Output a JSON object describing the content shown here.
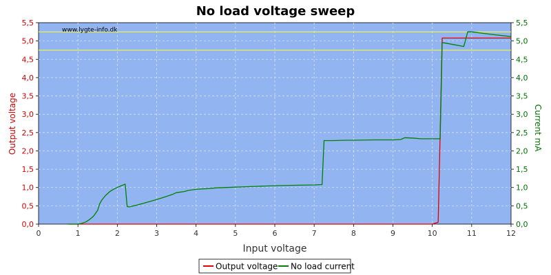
{
  "chart_data": {
    "type": "line",
    "title": "No load voltage sweep",
    "watermark": "www.lygte-info.dk",
    "xlabel": "Input voltage",
    "ylabel_left": "Output voltage",
    "ylabel_right": "Current mA",
    "xlim": [
      0,
      12
    ],
    "ylim_left": [
      0,
      5.5
    ],
    "ylim_right": [
      0,
      5.5
    ],
    "x_ticks": [
      0,
      1,
      2,
      3,
      4,
      5,
      6,
      7,
      8,
      9,
      10,
      11,
      12
    ],
    "x_tick_labels": [
      "0",
      "1",
      "2",
      "3",
      "4",
      "5",
      "6",
      "7",
      "8",
      "9",
      "10",
      "11",
      "12"
    ],
    "y_ticks": [
      0,
      0.5,
      1,
      1.5,
      2,
      2.5,
      3,
      3.5,
      4,
      4.5,
      5,
      5.5
    ],
    "y_left_tick_labels": [
      "0,0",
      "0,5",
      "1,0",
      "1,5",
      "2,0",
      "2,5",
      "3,0",
      "3,5",
      "4,0",
      "4,5",
      "5,0",
      "5,5"
    ],
    "y_right_tick_labels": [
      "0,0",
      "0,5",
      "1,0",
      "1,5",
      "2,0",
      "2,5",
      "3,0",
      "3,5",
      "4,0",
      "4,5",
      "5,0",
      "5,5"
    ],
    "grid": true,
    "reference_lines": [
      5.25,
      4.75
    ],
    "legend_position": "bottom-center",
    "series": [
      {
        "name": "Output voltage",
        "axis": "left",
        "color": "#e00000",
        "x": [
          0.75,
          2.0,
          4.0,
          6.0,
          8.0,
          10.0,
          10.15,
          10.2,
          10.25,
          11.0,
          12.0
        ],
        "y": [
          0.0,
          0.0,
          0.0,
          0.0,
          0.0,
          0.0,
          0.05,
          2.5,
          5.08,
          5.08,
          5.08
        ]
      },
      {
        "name": "No load current",
        "axis": "right",
        "color": "#008000",
        "x": [
          0.75,
          1.0,
          1.1,
          1.2,
          1.3,
          1.4,
          1.5,
          1.55,
          1.6,
          1.7,
          1.8,
          1.9,
          2.0,
          2.1,
          2.2,
          2.25,
          2.3,
          2.5,
          2.7,
          2.9,
          3.0,
          3.2,
          3.4,
          3.5,
          3.7,
          3.8,
          4.0,
          4.3,
          4.5,
          5.0,
          5.5,
          6.0,
          6.5,
          7.0,
          7.2,
          7.25,
          7.3,
          7.5,
          7.8,
          8.0,
          8.5,
          9.0,
          9.2,
          9.3,
          9.5,
          9.7,
          10.0,
          10.2,
          10.25,
          10.3,
          10.8,
          10.9,
          11.0,
          11.5,
          12.0
        ],
        "y": [
          0.0,
          0.0,
          0.02,
          0.06,
          0.13,
          0.22,
          0.38,
          0.55,
          0.65,
          0.78,
          0.88,
          0.95,
          1.0,
          1.05,
          1.09,
          0.48,
          0.47,
          0.52,
          0.58,
          0.64,
          0.67,
          0.74,
          0.81,
          0.86,
          0.89,
          0.92,
          0.95,
          0.97,
          0.99,
          1.01,
          1.03,
          1.05,
          1.06,
          1.07,
          1.08,
          2.28,
          2.28,
          2.28,
          2.29,
          2.29,
          2.3,
          2.3,
          2.31,
          2.36,
          2.35,
          2.33,
          2.33,
          2.33,
          4.95,
          4.95,
          4.85,
          5.25,
          5.25,
          5.18,
          5.12
        ]
      }
    ]
  }
}
